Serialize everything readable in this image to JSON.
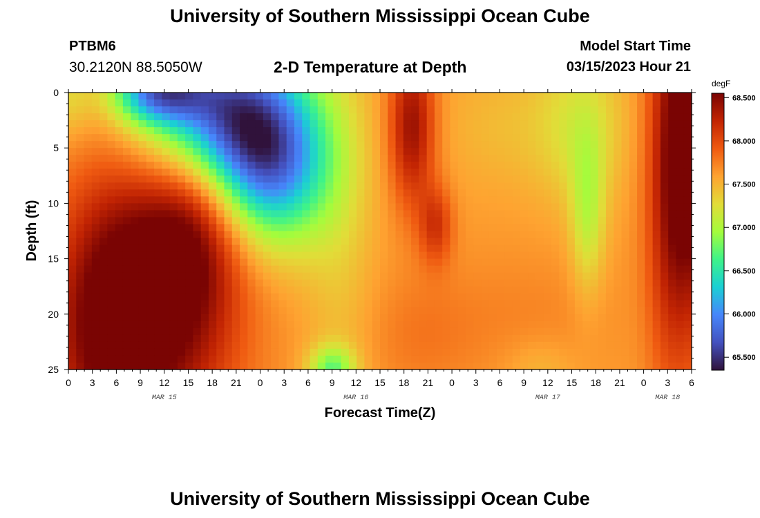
{
  "header": {
    "title": "University of Southern Mississippi Ocean Cube",
    "station_id": "PTBM6",
    "coordinates": "30.2120N  88.5050W",
    "subtitle": "2-D Temperature at Depth",
    "model_start_label": "Model Start Time",
    "model_start_value": "03/15/2023 Hour 21"
  },
  "footer": {
    "title": "University of Southern Mississippi Ocean Cube"
  },
  "chart_data": {
    "type": "heatmap",
    "title": "2-D Temperature at Depth",
    "xlabel": "Forecast Time(Z)",
    "ylabel": "Depth (ft)",
    "x_range_hours": [
      0,
      78
    ],
    "y_range_ft": [
      0,
      25
    ],
    "y_ticks": [
      "0",
      "5",
      "10",
      "15",
      "20",
      "25"
    ],
    "y_tick_values": [
      0,
      5,
      10,
      15,
      20,
      25
    ],
    "x_ticks": [
      "0",
      "3",
      "6",
      "9",
      "12",
      "15",
      "18",
      "21",
      "0",
      "3",
      "6",
      "9",
      "12",
      "15",
      "18",
      "21",
      "0",
      "3",
      "6",
      "9",
      "12",
      "15",
      "18",
      "21",
      "0",
      "3",
      "6"
    ],
    "day_labels": [
      {
        "text": "MAR 15",
        "hour": 12
      },
      {
        "text": "MAR 16",
        "hour": 36
      },
      {
        "text": "MAR 17",
        "hour": 60
      },
      {
        "text": "MAR 18",
        "hour": 75
      }
    ],
    "colorbar": {
      "unit": "degF",
      "min": 65.35,
      "max": 68.55,
      "tick_values": [
        65.5,
        66.0,
        66.5,
        67.0,
        67.5,
        68.0,
        68.5
      ],
      "tick_labels": [
        "65.500",
        "66.000",
        "66.500",
        "67.000",
        "67.500",
        "68.000",
        "68.500"
      ]
    },
    "grid": {
      "nx": 80,
      "ny": 40,
      "background_degF": 67.62,
      "features": [
        {
          "t": 11,
          "d": 18,
          "st": 7,
          "sd": 10,
          "a": 1.0
        },
        {
          "t": 4,
          "d": 22,
          "st": 5,
          "sd": 8,
          "a": 0.6
        },
        {
          "t": 16,
          "d": 10,
          "st": 4,
          "sd": 7,
          "a": 0.5
        },
        {
          "t": 19,
          "d": 2,
          "st": 7,
          "sd": 5,
          "a": -2.0
        },
        {
          "t": 26,
          "d": 7,
          "st": 5,
          "sd": 5,
          "a": -1.3
        },
        {
          "t": 11,
          "d": 0,
          "st": 4,
          "sd": 2,
          "a": -1.3
        },
        {
          "t": 0,
          "d": 0,
          "st": 2,
          "sd": 3,
          "a": -0.3
        },
        {
          "t": 34,
          "d": 14,
          "st": 3,
          "sd": 12,
          "a": -0.2
        },
        {
          "t": 33,
          "d": 25,
          "st": 2,
          "sd": 1.5,
          "a": -0.8
        },
        {
          "t": 43,
          "d": 3,
          "st": 2,
          "sd": 5,
          "a": 0.8
        },
        {
          "t": 46,
          "d": 12,
          "st": 1.5,
          "sd": 2.5,
          "a": 0.5
        },
        {
          "t": 44,
          "d": 22,
          "st": 5,
          "sd": 4,
          "a": 0.15
        },
        {
          "t": 57,
          "d": 20,
          "st": 8,
          "sd": 4,
          "a": 0.1
        },
        {
          "t": 54,
          "d": 3,
          "st": 5,
          "sd": 4,
          "a": -0.15
        },
        {
          "t": 64,
          "d": 3,
          "st": 4,
          "sd": 5,
          "a": -0.4
        },
        {
          "t": 65,
          "d": 11,
          "st": 1.5,
          "sd": 5,
          "a": -0.5
        },
        {
          "t": 59,
          "d": 25,
          "st": 3,
          "sd": 2,
          "a": -0.15
        },
        {
          "t": 78,
          "d": 4,
          "st": 3,
          "sd": 12,
          "a": 1.2
        },
        {
          "t": 75,
          "d": 12,
          "st": 2,
          "sd": 12,
          "a": 0.3
        }
      ]
    }
  }
}
